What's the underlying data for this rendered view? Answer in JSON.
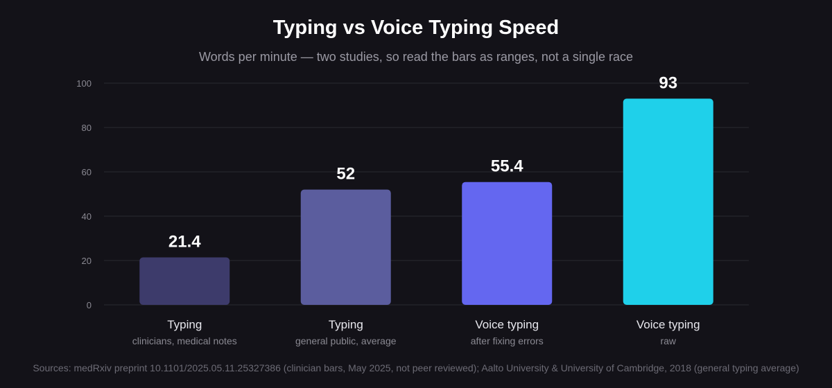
{
  "chart_data": {
    "type": "bar",
    "title": "Typing vs Voice Typing Speed",
    "subtitle": "Words per minute — two studies, so read the bars as ranges, not a single race",
    "categories": [
      "Typing",
      "Typing",
      "Voice typing",
      "Voice typing"
    ],
    "category_notes": [
      "clinicians, medical notes",
      "general public, average",
      "after fixing errors",
      "raw"
    ],
    "values": [
      21.4,
      52,
      55.4,
      93
    ],
    "value_labels": [
      "21.4",
      "52",
      "55.4",
      "93"
    ],
    "bar_colors": [
      "#3d3b6b",
      "#5b5d9e",
      "#6467f0",
      "#1fd0ea"
    ],
    "ylim": [
      0,
      100
    ],
    "yticks": [
      0,
      20,
      40,
      60,
      80,
      100
    ],
    "grid": true,
    "xlabel": "",
    "ylabel": ""
  },
  "footer": {
    "sources": "Sources: medRxiv preprint 10.1101/2025.05.11.25327386 (clinician bars, May 2025, not peer reviewed); Aalto University & University of Cambridge, 2018 (general typing average)"
  },
  "colors": {
    "background": "#131218",
    "grid": "#2a2930",
    "tick_text": "#8a8992",
    "note_text": "#8a8992",
    "category_text": "#e8e8ee"
  }
}
